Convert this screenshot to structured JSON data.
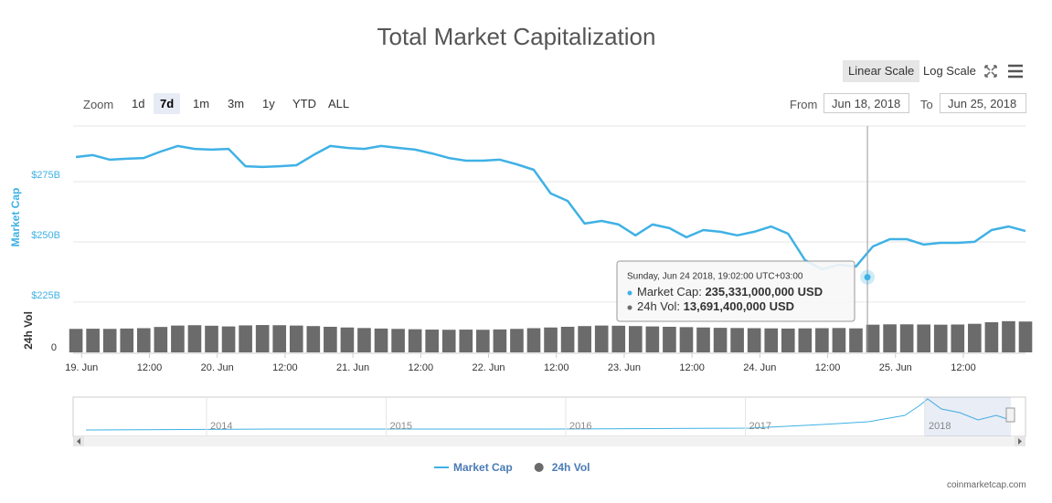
{
  "chart_data": {
    "type": "line",
    "title": "Total Market Capitalization",
    "ylabel": "Market Cap",
    "y2label": "24h Vol",
    "log_scale": false,
    "grid": true,
    "x": [
      "2018-06-18T23:00",
      "2018-06-19T02:00",
      "2018-06-19T05:00",
      "2018-06-19T08:00",
      "2018-06-19T11:00",
      "2018-06-19T14:00",
      "2018-06-19T17:00",
      "2018-06-19T20:00",
      "2018-06-19T23:00",
      "2018-06-20T02:00",
      "2018-06-20T05:00",
      "2018-06-20T08:00",
      "2018-06-20T11:00",
      "2018-06-20T14:00",
      "2018-06-20T17:00",
      "2018-06-20T20:00",
      "2018-06-20T23:00",
      "2018-06-21T02:00",
      "2018-06-21T05:00",
      "2018-06-21T08:00",
      "2018-06-21T11:00",
      "2018-06-21T14:00",
      "2018-06-21T17:00",
      "2018-06-21T20:00",
      "2018-06-21T23:00",
      "2018-06-22T02:00",
      "2018-06-22T05:00",
      "2018-06-22T08:00",
      "2018-06-22T11:00",
      "2018-06-22T14:00",
      "2018-06-22T17:00",
      "2018-06-22T20:00",
      "2018-06-22T23:00",
      "2018-06-23T02:00",
      "2018-06-23T05:00",
      "2018-06-23T08:00",
      "2018-06-23T11:00",
      "2018-06-23T14:00",
      "2018-06-23T17:00",
      "2018-06-23T20:00",
      "2018-06-23T23:00",
      "2018-06-24T02:00",
      "2018-06-24T05:00",
      "2018-06-24T08:00",
      "2018-06-24T11:00",
      "2018-06-24T14:00",
      "2018-06-24T17:00",
      "2018-06-24T20:00",
      "2018-06-24T23:00",
      "2018-06-25T02:00",
      "2018-06-25T05:00",
      "2018-06-25T08:00",
      "2018-06-25T11:00",
      "2018-06-25T14:00",
      "2018-06-25T17:00",
      "2018-06-25T20:00",
      "2018-06-25T23:00"
    ],
    "series": [
      {
        "name": "Market Cap",
        "color": "#3fb1e5",
        "values": [
          285.2,
          286.0,
          284.1,
          284.5,
          284.8,
          287.5,
          289.8,
          288.6,
          288.3,
          288.6,
          281.4,
          281.1,
          281.4,
          281.8,
          286.0,
          289.8,
          289.0,
          288.6,
          289.8,
          289.0,
          288.3,
          286.7,
          284.8,
          283.7,
          283.7,
          284.1,
          282.2,
          279.9,
          270.1,
          267.0,
          257.6,
          258.7,
          257.2,
          252.7,
          257.2,
          255.7,
          251.9,
          254.9,
          254.2,
          252.7,
          254.2,
          256.4,
          253.4,
          242.4,
          238.6,
          240.5,
          239.8,
          248.1,
          251.1,
          251.1,
          248.9,
          249.6,
          249.6,
          250.0,
          254.9,
          256.4,
          254.5
        ]
      },
      {
        "name": "24h Vol",
        "color": "#6b6b6b",
        "axis": "y2",
        "values": [
          13.4,
          13.5,
          13.4,
          13.6,
          13.8,
          14.5,
          15.3,
          15.5,
          15.2,
          14.8,
          15.4,
          15.6,
          15.5,
          15.3,
          15.0,
          14.6,
          14.2,
          13.9,
          13.6,
          13.4,
          13.2,
          13.0,
          12.9,
          13.0,
          12.9,
          13.1,
          13.4,
          13.8,
          14.2,
          14.6,
          15.0,
          15.3,
          15.2,
          15.0,
          14.8,
          14.6,
          14.4,
          14.2,
          14.0,
          13.9,
          13.8,
          13.7,
          13.6,
          13.7,
          13.8,
          13.9,
          13.7,
          15.8,
          16.0,
          16.0,
          15.9,
          15.8,
          15.9,
          16.3,
          17.2,
          17.8,
          17.6
        ]
      }
    ],
    "xlim": [
      "2018-06-18T22:30",
      "2018-06-25T23:00"
    ],
    "xticks": [
      {
        "value": "2018-06-19T00:00",
        "label": "19. Jun"
      },
      {
        "value": "2018-06-19T12:00",
        "label": "12:00"
      },
      {
        "value": "2018-06-20T00:00",
        "label": "20. Jun"
      },
      {
        "value": "2018-06-20T12:00",
        "label": "12:00"
      },
      {
        "value": "2018-06-21T00:00",
        "label": "21. Jun"
      },
      {
        "value": "2018-06-21T12:00",
        "label": "12:00"
      },
      {
        "value": "2018-06-22T00:00",
        "label": "22. Jun"
      },
      {
        "value": "2018-06-22T12:00",
        "label": "12:00"
      },
      {
        "value": "2018-06-23T00:00",
        "label": "23. Jun"
      },
      {
        "value": "2018-06-23T12:00",
        "label": "12:00"
      },
      {
        "value": "2018-06-24T00:00",
        "label": "24. Jun"
      },
      {
        "value": "2018-06-24T12:00",
        "label": "12:00"
      },
      {
        "value": "2018-06-25T00:00",
        "label": "25. Jun"
      },
      {
        "value": "2018-06-25T12:00",
        "label": "12:00"
      }
    ],
    "ylim": [
      222.7,
      298.1
    ],
    "yticks": [
      {
        "value": 225,
        "label": "$225B"
      },
      {
        "value": 250,
        "label": "$250B"
      },
      {
        "value": 275,
        "label": "$275B"
      }
    ],
    "y2lim": [
      0,
      25
    ],
    "y2ticks": [
      0
    ],
    "tooltip": {
      "x": "2018-06-24T19:02",
      "y": 235.331,
      "header": "Sunday, Jun 24 2018, 19:02:00 UTC+03:00",
      "rows": [
        {
          "label": "Market Cap:",
          "value": "235,331,000,000 USD"
        },
        {
          "label": "24h Vol:",
          "value": "13,691,400,000 USD"
        }
      ]
    }
  },
  "ui": {
    "zoom_label": "Zoom",
    "zoom_buttons": [
      "1d",
      "7d",
      "1m",
      "3m",
      "1y",
      "YTD",
      "ALL"
    ],
    "active_zoom": "7d",
    "scale_buttons": [
      "Linear Scale",
      "Log Scale"
    ],
    "from_label": "From",
    "from": "Jun 18, 2018",
    "to_label": "To",
    "to": "Jun 25, 2018",
    "navigator_labels": [
      "2014",
      "2015",
      "2016",
      "2017",
      "2018"
    ],
    "credit": "coinmarketcap.com"
  }
}
